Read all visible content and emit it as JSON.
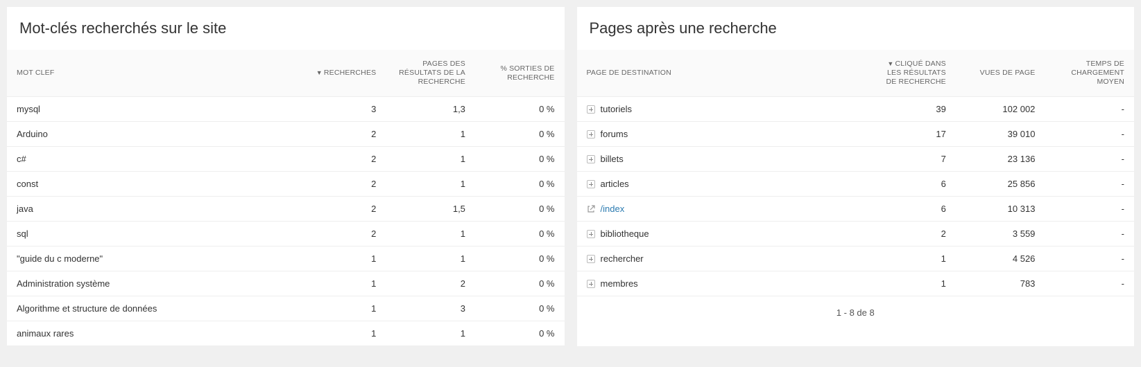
{
  "left": {
    "title": "Mot-clés recherchés sur le site",
    "columns": {
      "keyword": "MOT CLEF",
      "searches": "RECHERCHES",
      "results_pages": "PAGES DES RÉSULTATS DE LA RECHERCHE",
      "exit_pct": "% SORTIES DE RECHERCHE"
    },
    "sort_column": "searches",
    "rows": [
      {
        "keyword": "mysql",
        "searches": "3",
        "results_pages": "1,3",
        "exit_pct": "0 %"
      },
      {
        "keyword": "Arduino",
        "searches": "2",
        "results_pages": "1",
        "exit_pct": "0 %"
      },
      {
        "keyword": "c#",
        "searches": "2",
        "results_pages": "1",
        "exit_pct": "0 %"
      },
      {
        "keyword": "const",
        "searches": "2",
        "results_pages": "1",
        "exit_pct": "0 %"
      },
      {
        "keyword": "java",
        "searches": "2",
        "results_pages": "1,5",
        "exit_pct": "0 %"
      },
      {
        "keyword": "sql",
        "searches": "2",
        "results_pages": "1",
        "exit_pct": "0 %"
      },
      {
        "keyword": "\"guide du c moderne\"",
        "searches": "1",
        "results_pages": "1",
        "exit_pct": "0 %"
      },
      {
        "keyword": "Administration système",
        "searches": "1",
        "results_pages": "2",
        "exit_pct": "0 %"
      },
      {
        "keyword": "Algorithme et structure de données",
        "searches": "1",
        "results_pages": "3",
        "exit_pct": "0 %"
      },
      {
        "keyword": "animaux rares",
        "searches": "1",
        "results_pages": "1",
        "exit_pct": "0 %"
      }
    ]
  },
  "right": {
    "title": "Pages après une recherche",
    "columns": {
      "destination": "PAGE DE DESTINATION",
      "clicked": "CLIQUÉ DANS LES RÉSULTATS DE RECHERCHE",
      "views": "VUES DE PAGE",
      "load_time": "TEMPS DE CHARGEMENT MOYEN"
    },
    "sort_column": "clicked",
    "rows": [
      {
        "type": "folder",
        "label": "tutoriels",
        "clicked": "39",
        "views": "102 002",
        "load": "-"
      },
      {
        "type": "folder",
        "label": "forums",
        "clicked": "17",
        "views": "39 010",
        "load": "-"
      },
      {
        "type": "folder",
        "label": "billets",
        "clicked": "7",
        "views": "23 136",
        "load": "-"
      },
      {
        "type": "folder",
        "label": "articles",
        "clicked": "6",
        "views": "25 856",
        "load": "-"
      },
      {
        "type": "link",
        "label": "/index",
        "clicked": "6",
        "views": "10 313",
        "load": "-"
      },
      {
        "type": "folder",
        "label": "bibliotheque",
        "clicked": "2",
        "views": "3 559",
        "load": "-"
      },
      {
        "type": "folder",
        "label": "rechercher",
        "clicked": "1",
        "views": "4 526",
        "load": "-"
      },
      {
        "type": "folder",
        "label": "membres",
        "clicked": "1",
        "views": "783",
        "load": "-"
      }
    ],
    "pager": "1 - 8 de 8"
  },
  "colors": {
    "panel_bg": "#ffffff",
    "page_bg": "#f0f0f0",
    "text": "#333333",
    "header_text": "#666666",
    "border": "#eeeeee",
    "link": "#2a7ab0",
    "icon_border": "#bbbbbb"
  }
}
